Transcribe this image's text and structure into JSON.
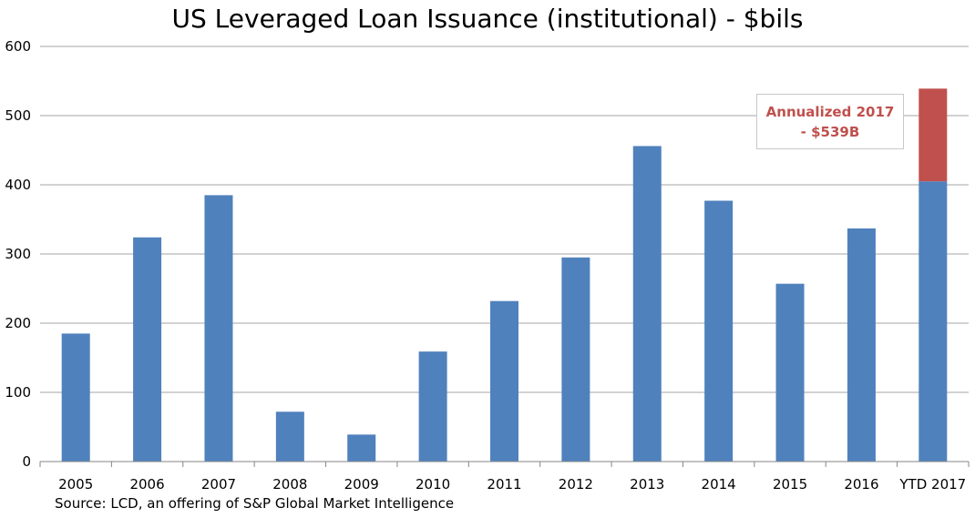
{
  "chart_data": {
    "type": "bar",
    "title": "US Leveraged Loan Issuance (institutional) - $bils",
    "categories": [
      "2005",
      "2006",
      "2007",
      "2008",
      "2009",
      "2010",
      "2011",
      "2012",
      "2013",
      "2014",
      "2015",
      "2016",
      "YTD 2017"
    ],
    "series": [
      {
        "values": [
          185,
          324,
          385,
          72,
          39,
          159,
          232,
          295,
          456,
          377,
          257,
          337,
          405
        ],
        "color": "#4f81bd"
      },
      {
        "values": [
          0,
          0,
          0,
          0,
          0,
          0,
          0,
          0,
          0,
          0,
          0,
          0,
          134
        ],
        "color": "#c0504d"
      }
    ],
    "ylim": [
      0,
      600
    ],
    "yticks": [
      "0",
      "100",
      "200",
      "300",
      "400",
      "500",
      "600"
    ],
    "grid": true,
    "annotation": "Annualized 2017 - $539B",
    "source": "Source: LCD, an offering of S&P Global Market Intelligence"
  }
}
